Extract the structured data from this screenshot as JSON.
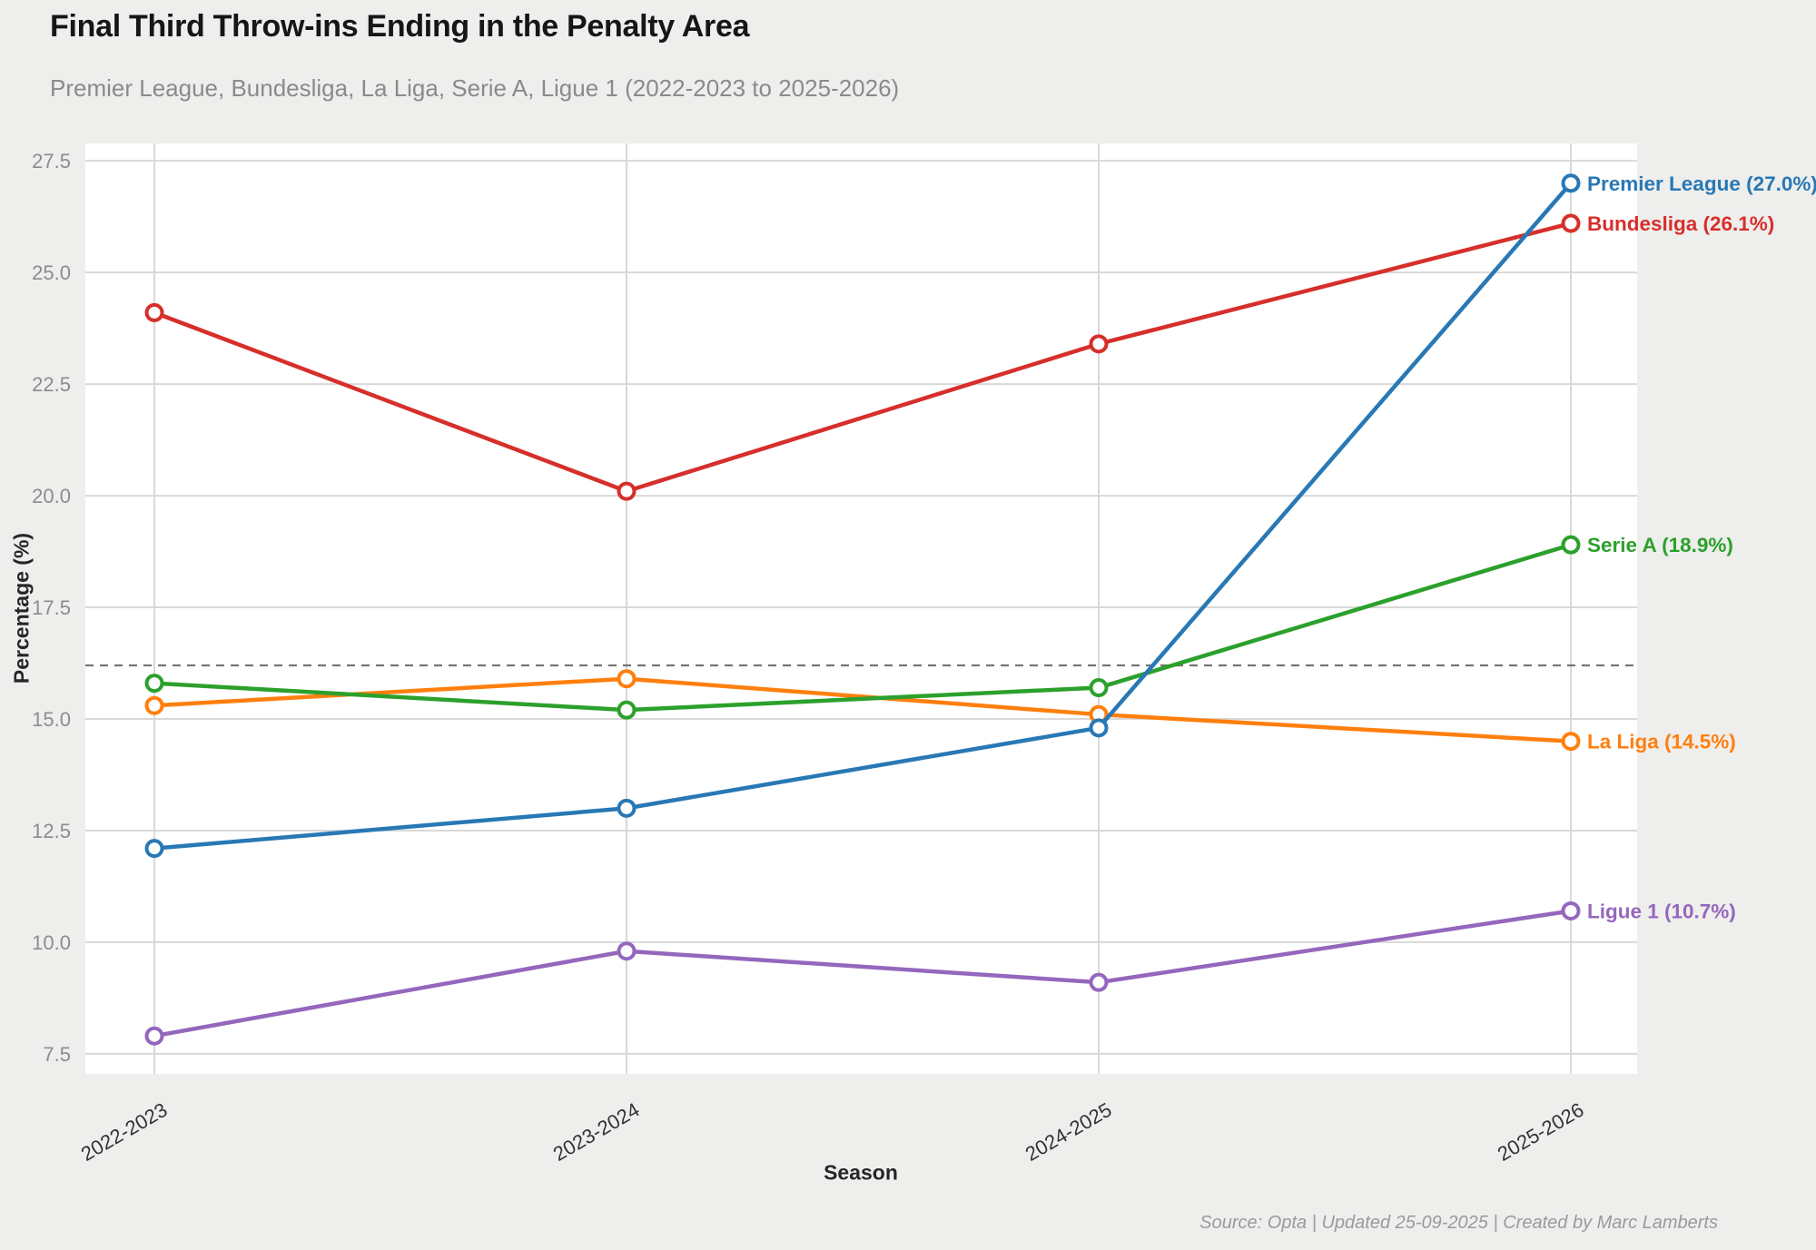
{
  "header": {
    "title": "Final Third Throw-ins Ending in the Penalty Area",
    "subtitle": "Premier League, Bundesliga, La Liga, Serie A, Ligue 1 (2022-2023 to 2025-2026)"
  },
  "footer": {
    "credit": "Source: Opta | Updated 25-09-2025 | Created by Marc Lamberts"
  },
  "colors": {
    "background": "#eeeeec",
    "plot_background": "#ffffff",
    "grid": "#d8d8d8",
    "y_tick_label": "#8c8c8c",
    "x_tick_label": "#333333",
    "axis_label": "#262626",
    "average_line": "#757575"
  },
  "chart_data": {
    "type": "line",
    "title": "Final Third Throw-ins Ending in the Penalty Area",
    "subtitle": "Premier League, Bundesliga, La Liga, Serie A, Ligue 1 (2022-2023 to 2025-2026)",
    "xlabel": "Season",
    "ylabel": "Percentage (%)",
    "categories": [
      "2022-2023",
      "2023-2024",
      "2024-2025",
      "2025-2026"
    ],
    "yticks": [
      7.5,
      10.0,
      12.5,
      15.0,
      17.5,
      20.0,
      22.5,
      25.0,
      27.5
    ],
    "ylim": [
      7.05,
      27.89
    ],
    "grid": true,
    "legend_position": "end-of-line labels, right of last data point",
    "average_line": {
      "value": 16.2,
      "style": "dashed"
    },
    "marker": "open-circle",
    "series": [
      {
        "name": "Premier League",
        "color": "#2878b5",
        "values": [
          12.1,
          13.0,
          14.8,
          27.0
        ],
        "end_label": "Premier League (27.0%)"
      },
      {
        "name": "Bundesliga",
        "color": "#d62f2b",
        "values": [
          24.1,
          20.1,
          23.4,
          26.1
        ],
        "end_label": "Bundesliga (26.1%)"
      },
      {
        "name": "Serie A",
        "color": "#2ca02c",
        "values": [
          15.8,
          15.2,
          15.7,
          18.9
        ],
        "end_label": "Serie A (18.9%)"
      },
      {
        "name": "La Liga",
        "color": "#ff7f0e",
        "values": [
          15.3,
          15.9,
          15.1,
          14.5
        ],
        "end_label": "La Liga (14.5%)"
      },
      {
        "name": "Ligue 1",
        "color": "#9467bd",
        "values": [
          7.9,
          9.8,
          9.1,
          10.7
        ],
        "end_label": "Ligue 1 (10.7%)"
      }
    ]
  }
}
